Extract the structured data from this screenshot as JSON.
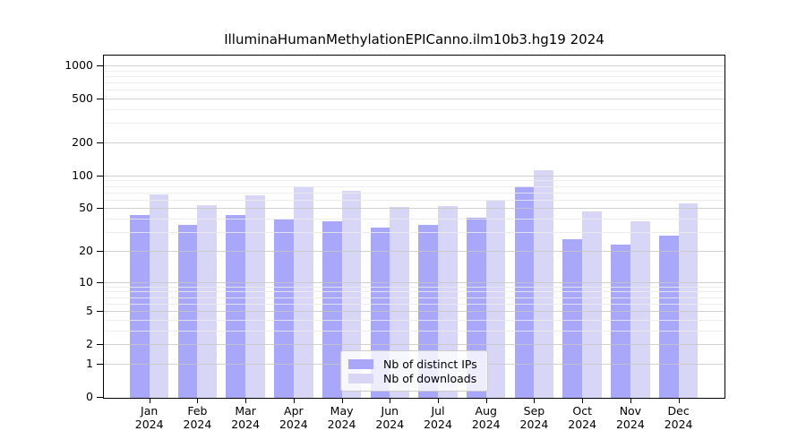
{
  "title": "IlluminaHumanMethylationEPICanno.ilm10b3.hg19 2024",
  "legend": {
    "items": [
      {
        "label": "Nb of distinct IPs",
        "color": "#a9a7f9"
      },
      {
        "label": "Nb of downloads",
        "color": "#d8d6f7"
      }
    ]
  },
  "chart_data": {
    "type": "bar",
    "title": "IlluminaHumanMethylationEPICanno.ilm10b3.hg19 2024",
    "categories": [
      "Jan",
      "Feb",
      "Mar",
      "Apr",
      "May",
      "Jun",
      "Jul",
      "Aug",
      "Sep",
      "Oct",
      "Nov",
      "Dec"
    ],
    "category_year": "2024",
    "series": [
      {
        "name": "Nb of distinct IPs",
        "color": "#a9a7f9",
        "values": [
          43,
          35,
          43,
          39,
          38,
          33,
          35,
          41,
          80,
          26,
          23,
          28
        ]
      },
      {
        "name": "Nb of downloads",
        "color": "#d8d6f7",
        "values": [
          67,
          53,
          66,
          80,
          73,
          51,
          52,
          59,
          112,
          47,
          38,
          55
        ]
      }
    ],
    "y_scale": "log1p",
    "y_ticks": [
      0,
      1,
      2,
      5,
      10,
      20,
      50,
      100,
      200,
      500,
      1000
    ],
    "y_minor_gridlines": [
      3,
      4,
      6,
      7,
      8,
      9,
      30,
      40,
      60,
      70,
      80,
      90,
      300,
      400,
      600,
      700,
      800,
      900
    ],
    "ylim": [
      0,
      1100
    ],
    "grid": true,
    "legend_position": "inside-bottom-center",
    "axis_color": "#000000",
    "major_grid_color": "#c7c7c7",
    "minor_grid_color": "#ebebeb"
  }
}
